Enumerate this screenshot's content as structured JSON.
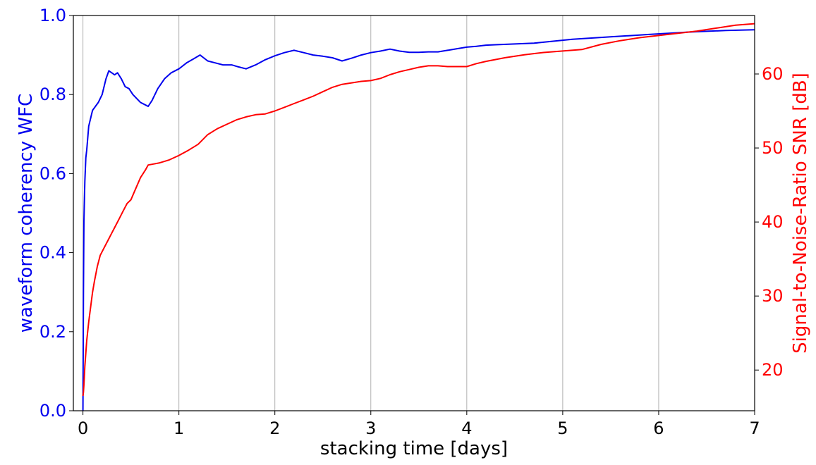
{
  "chart_data": {
    "type": "line",
    "xlabel": "stacking time [days]",
    "ylabel_left": "waveform coherency WFC",
    "ylabel_right": "Signal-to-Noise-Ratio SNR [dB]",
    "xlim": [
      -0.1,
      7.0
    ],
    "ylim_left": [
      0.0,
      1.0
    ],
    "ylim_right": [
      14.5,
      67.9
    ],
    "x_ticks": [
      "0",
      "1",
      "2",
      "3",
      "4",
      "5",
      "6",
      "7"
    ],
    "y_ticks_left": [
      "0.0",
      "0.2",
      "0.4",
      "0.6",
      "0.8",
      "1.0"
    ],
    "y_ticks_right": [
      "20",
      "30",
      "40",
      "50",
      "60"
    ],
    "grid": "vertical",
    "colors": {
      "wfc": "#0000ee",
      "snr": "#ff0000",
      "grid": "#b0b0b0"
    },
    "series": [
      {
        "label": "waveform coherency WFC",
        "axis": "left",
        "x": [
          0,
          0.005,
          0.01,
          0.02,
          0.03,
          0.04,
          0.05,
          0.06,
          0.08,
          0.1,
          0.13,
          0.16,
          0.2,
          0.24,
          0.27,
          0.3,
          0.33,
          0.36,
          0.4,
          0.44,
          0.48,
          0.52,
          0.56,
          0.6,
          0.64,
          0.68,
          0.72,
          0.78,
          0.85,
          0.92,
          1.0,
          1.08,
          1.15,
          1.22,
          1.3,
          1.38,
          1.46,
          1.55,
          1.62,
          1.7,
          1.8,
          1.9,
          2.0,
          2.1,
          2.2,
          2.3,
          2.4,
          2.5,
          2.6,
          2.7,
          2.8,
          2.9,
          3.0,
          3.1,
          3.2,
          3.3,
          3.4,
          3.5,
          3.6,
          3.7,
          3.8,
          3.9,
          4.0,
          4.1,
          4.2,
          4.3,
          4.5,
          4.7,
          4.9,
          5.1,
          5.3,
          5.5,
          5.7,
          5.9,
          6.1,
          6.3,
          6.5,
          6.7,
          7.0
        ],
        "y": [
          0.0,
          0.3,
          0.48,
          0.58,
          0.64,
          0.66,
          0.69,
          0.72,
          0.74,
          0.76,
          0.77,
          0.78,
          0.8,
          0.84,
          0.86,
          0.855,
          0.85,
          0.855,
          0.84,
          0.82,
          0.815,
          0.8,
          0.79,
          0.78,
          0.775,
          0.77,
          0.785,
          0.815,
          0.84,
          0.855,
          0.865,
          0.88,
          0.89,
          0.9,
          0.885,
          0.88,
          0.875,
          0.875,
          0.87,
          0.865,
          0.875,
          0.888,
          0.898,
          0.906,
          0.912,
          0.906,
          0.9,
          0.897,
          0.893,
          0.885,
          0.892,
          0.9,
          0.906,
          0.91,
          0.915,
          0.91,
          0.907,
          0.907,
          0.908,
          0.908,
          0.912,
          0.916,
          0.92,
          0.922,
          0.925,
          0.926,
          0.928,
          0.93,
          0.935,
          0.94,
          0.943,
          0.946,
          0.949,
          0.952,
          0.955,
          0.958,
          0.96,
          0.962,
          0.964
        ]
      },
      {
        "label": "Signal-to-Noise-Ratio SNR [dB]",
        "axis": "right",
        "x": [
          0,
          0.005,
          0.01,
          0.02,
          0.04,
          0.06,
          0.08,
          0.1,
          0.12,
          0.15,
          0.18,
          0.22,
          0.26,
          0.3,
          0.34,
          0.38,
          0.42,
          0.46,
          0.5,
          0.55,
          0.6,
          0.65,
          0.68,
          0.72,
          0.8,
          0.9,
          1.0,
          1.1,
          1.2,
          1.3,
          1.4,
          1.5,
          1.6,
          1.7,
          1.8,
          1.9,
          2.0,
          2.1,
          2.2,
          2.3,
          2.4,
          2.5,
          2.6,
          2.7,
          2.8,
          2.9,
          3.0,
          3.1,
          3.2,
          3.3,
          3.4,
          3.5,
          3.6,
          3.7,
          3.8,
          3.9,
          4.0,
          4.1,
          4.2,
          4.4,
          4.6,
          4.8,
          5.0,
          5.2,
          5.4,
          5.6,
          5.8,
          6.0,
          6.2,
          6.4,
          6.6,
          6.8,
          7.0
        ],
        "y": [
          16.5,
          17.0,
          18.0,
          20.5,
          24.0,
          26.5,
          28.5,
          30.5,
          32.0,
          34.0,
          35.5,
          36.5,
          37.5,
          38.5,
          39.5,
          40.5,
          41.5,
          42.5,
          43.0,
          44.5,
          46.0,
          47.0,
          47.7,
          47.8,
          48.0,
          48.4,
          49.0,
          49.7,
          50.5,
          51.8,
          52.6,
          53.2,
          53.8,
          54.2,
          54.5,
          54.6,
          55.0,
          55.5,
          56.0,
          56.5,
          57.0,
          57.6,
          58.2,
          58.6,
          58.8,
          59.0,
          59.1,
          59.4,
          59.9,
          60.3,
          60.6,
          60.9,
          61.1,
          61.1,
          61.0,
          61.0,
          61.0,
          61.4,
          61.7,
          62.2,
          62.6,
          62.9,
          63.1,
          63.3,
          64.0,
          64.5,
          64.9,
          65.2,
          65.5,
          65.8,
          66.2,
          66.6,
          66.8
        ]
      }
    ]
  }
}
